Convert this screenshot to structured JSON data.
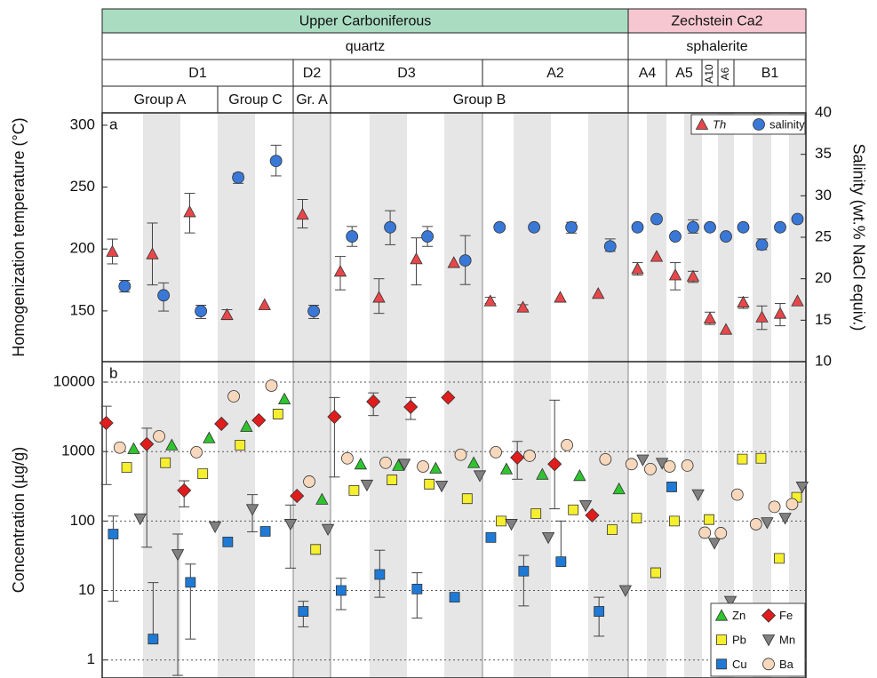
{
  "header": {
    "rows": [
      [
        "Upper Carboniferous",
        "Zechstein Ca2"
      ],
      [
        "quartz",
        "sphalerite"
      ],
      [
        "D1",
        "D2",
        "D3",
        "A2",
        "A4",
        "A5",
        "A10",
        "A6",
        "B1"
      ],
      [
        "Group A",
        "Group C",
        "Gr. A",
        "Group B"
      ]
    ]
  },
  "chart_data": [
    {
      "type": "scatter",
      "panel_label": "a",
      "y_label": "Homogenization temperature (°C)",
      "y2_label": "Salinity (wt.% NaCl equiv.)",
      "categories": [
        null,
        null,
        null,
        null,
        null,
        null,
        null,
        null,
        null,
        null,
        null,
        null,
        null,
        null,
        null,
        null,
        null,
        null,
        null,
        null,
        null,
        null,
        null,
        null
      ],
      "ylim": [
        109,
        310
      ],
      "yticks": [
        150,
        200,
        250,
        300
      ],
      "y2lim": [
        10,
        40
      ],
      "y2ticks": [
        10,
        15,
        20,
        25,
        30,
        35,
        40
      ],
      "legend": "upper right",
      "series": [
        {
          "name": "Th",
          "color": "#e8474a",
          "marker": "triangle",
          "values": [
            198,
            196,
            230,
            147,
            155,
            228,
            182,
            161,
            192,
            189,
            158,
            153,
            161,
            164,
            184,
            194,
            179,
            178,
            144,
            135,
            157,
            145,
            148,
            158
          ],
          "error_low": [
            188,
            171,
            213,
            143,
            null,
            217,
            167,
            148,
            171,
            null,
            156,
            151,
            null,
            null,
            179,
            null,
            167,
            173,
            139,
            null,
            152,
            135,
            138,
            null
          ],
          "error_high": [
            208,
            221,
            245,
            151,
            null,
            240,
            194,
            176,
            209,
            null,
            161,
            155,
            null,
            null,
            189,
            null,
            189,
            182,
            149,
            null,
            161,
            154,
            156,
            null
          ]
        },
        {
          "name": "salinity",
          "color": "#3a78d8",
          "marker": "circle",
          "axis": "y2",
          "values": [
            19.1,
            18.0,
            16.1,
            32.2,
            34.2,
            16.1,
            25.1,
            26.2,
            25.1,
            22.2,
            26.2,
            26.2,
            26.2,
            23.9,
            26.2,
            27.2,
            25.1,
            26.2,
            26.2,
            25.1,
            26.2,
            24.1,
            26.2,
            27.2
          ],
          "error_low": [
            18.4,
            16.1,
            15.2,
            31.5,
            32.4,
            15.2,
            23.9,
            24.1,
            23.9,
            19.3,
            null,
            null,
            25.5,
            23.3,
            null,
            null,
            null,
            25.5,
            null,
            null,
            null,
            23.5,
            null,
            null
          ],
          "error_high": [
            19.8,
            19.5,
            16.8,
            32.7,
            36.1,
            16.8,
            26.3,
            28.2,
            26.3,
            25.2,
            null,
            null,
            26.8,
            24.8,
            null,
            null,
            null,
            27.1,
            null,
            null,
            null,
            24.8,
            null,
            null
          ]
        }
      ]
    },
    {
      "type": "scatter",
      "panel_label": "b",
      "y_label": "Concentration (µg/g)",
      "categories": [
        null,
        null,
        null,
        null,
        null,
        null,
        null,
        null,
        null,
        null,
        null,
        null,
        null,
        null,
        null,
        null,
        null,
        null,
        null,
        null,
        null,
        null,
        null,
        null
      ],
      "log_scale": true,
      "grid": true,
      "ylim": [
        0.55,
        19700
      ],
      "yticks": [
        1,
        10,
        100,
        1000,
        10000
      ],
      "legend": "lower right",
      "series": [
        {
          "name": "Zn",
          "color": "#2ec42e",
          "marker": "triangle",
          "values": [
            1100,
            1240,
            1570,
            2300,
            5700,
            205,
            660,
            630,
            575,
            690,
            560,
            470,
            450,
            290,
            null,
            null,
            null,
            null,
            null,
            null,
            null,
            null,
            null,
            null
          ]
        },
        {
          "name": "Pb",
          "color": "#f5ef2e",
          "marker": "square",
          "values": [
            590,
            690,
            480,
            1240,
            3470,
            39,
            276,
            391,
            340,
            210,
            100,
            128,
            145,
            75,
            110,
            18,
            100,
            null,
            105,
            null,
            780,
            800,
            29,
            220
          ]
        },
        {
          "name": "Cu",
          "color": "#1e7ad6",
          "marker": "square",
          "values": [
            65,
            2,
            13.1,
            50,
            71,
            5,
            10,
            17,
            10.5,
            8,
            58,
            19,
            26,
            5,
            null,
            null,
            310,
            null,
            null,
            null,
            null,
            null,
            null,
            null
          ],
          "error_low": [
            7,
            2,
            2,
            null,
            null,
            3,
            5.3,
            8,
            4,
            null,
            null,
            6,
            26,
            2.2,
            null,
            null,
            null,
            null,
            null,
            null,
            null,
            null,
            null,
            null
          ],
          "error_high": [
            118,
            13,
            24,
            null,
            null,
            7,
            15,
            38,
            18,
            null,
            null,
            32,
            100,
            8,
            null,
            null,
            null,
            null,
            null,
            null,
            null,
            null,
            null,
            null
          ]
        },
        {
          "name": "Fe",
          "color": "#e01c1c",
          "marker": "diamond",
          "values": [
            2580,
            1280,
            276,
            2510,
            2820,
            230,
            3170,
            5240,
            4390,
            6000,
            null,
            820,
            660,
            121,
            null,
            null,
            null,
            null,
            null,
            null,
            null,
            null,
            null,
            null
          ],
          "error_low": [
            335,
            42,
            160,
            null,
            null,
            null,
            430,
            3300,
            2900,
            null,
            null,
            400,
            150,
            null,
            null,
            null,
            null,
            null,
            null,
            null,
            null,
            null,
            null,
            null
          ],
          "error_high": [
            4500,
            2170,
            380,
            null,
            null,
            null,
            6000,
            7000,
            6000,
            null,
            null,
            1400,
            5500,
            null,
            null,
            null,
            null,
            null,
            null,
            null,
            null,
            null,
            null,
            null
          ]
        },
        {
          "name": "Mn",
          "color": "#808080",
          "marker": "triangle-down",
          "values": [
            108,
            33,
            83,
            147,
            90,
            76,
            330,
            660,
            320,
            450,
            90,
            58,
            167,
            10,
            760,
            680,
            null,
            240,
            48,
            7,
            null,
            95,
            110,
            310
          ],
          "error_low": [
            null,
            0.6,
            null,
            70,
            21,
            null,
            null,
            null,
            null,
            null,
            null,
            null,
            null,
            null,
            null,
            null,
            null,
            null,
            null,
            null,
            null,
            null,
            null,
            null
          ],
          "error_high": [
            null,
            65,
            null,
            240,
            170,
            null,
            null,
            null,
            null,
            null,
            null,
            null,
            null,
            null,
            null,
            null,
            null,
            null,
            null,
            null,
            null,
            null,
            null,
            null
          ]
        },
        {
          "name": "Ba",
          "color": "#f7d8bd",
          "marker": "circle",
          "values": [
            1140,
            1660,
            980,
            6240,
            8900,
            370,
            800,
            690,
            610,
            900,
            980,
            870,
            1240,
            775,
            660,
            560,
            610,
            630,
            68,
            67,
            240,
            90,
            160,
            175
          ]
        }
      ]
    }
  ]
}
